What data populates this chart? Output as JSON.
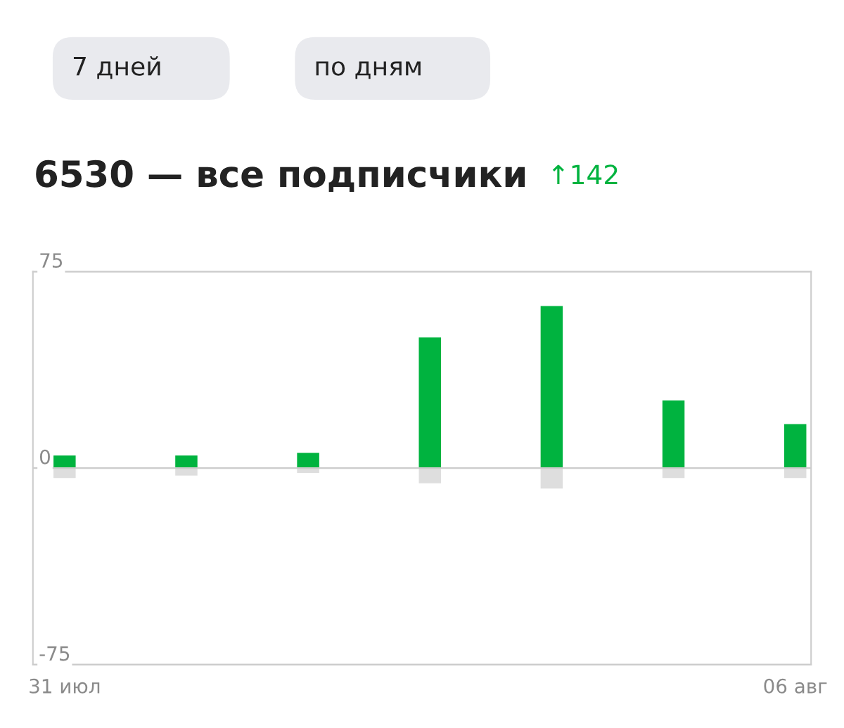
{
  "chart_data": {
    "type": "bar",
    "title": "6530 — все подписчики",
    "subtitle": "↑142",
    "annotations": [
      "7 дней",
      "по дням"
    ],
    "categories": [
      "31 июл",
      null,
      null,
      null,
      null,
      null,
      "06 авг"
    ],
    "series": [
      {
        "color": "#00b33f",
        "values": [
          5,
          5,
          6,
          50,
          62,
          26,
          17
        ]
      },
      {
        "color": "#dedede",
        "values": [
          -4,
          -3,
          -2,
          -6,
          -8,
          -4,
          -4
        ]
      }
    ],
    "stacked": true,
    "ylim": [
      -75,
      75
    ],
    "yticks": [
      -75,
      0,
      75
    ],
    "grid": "y"
  }
}
